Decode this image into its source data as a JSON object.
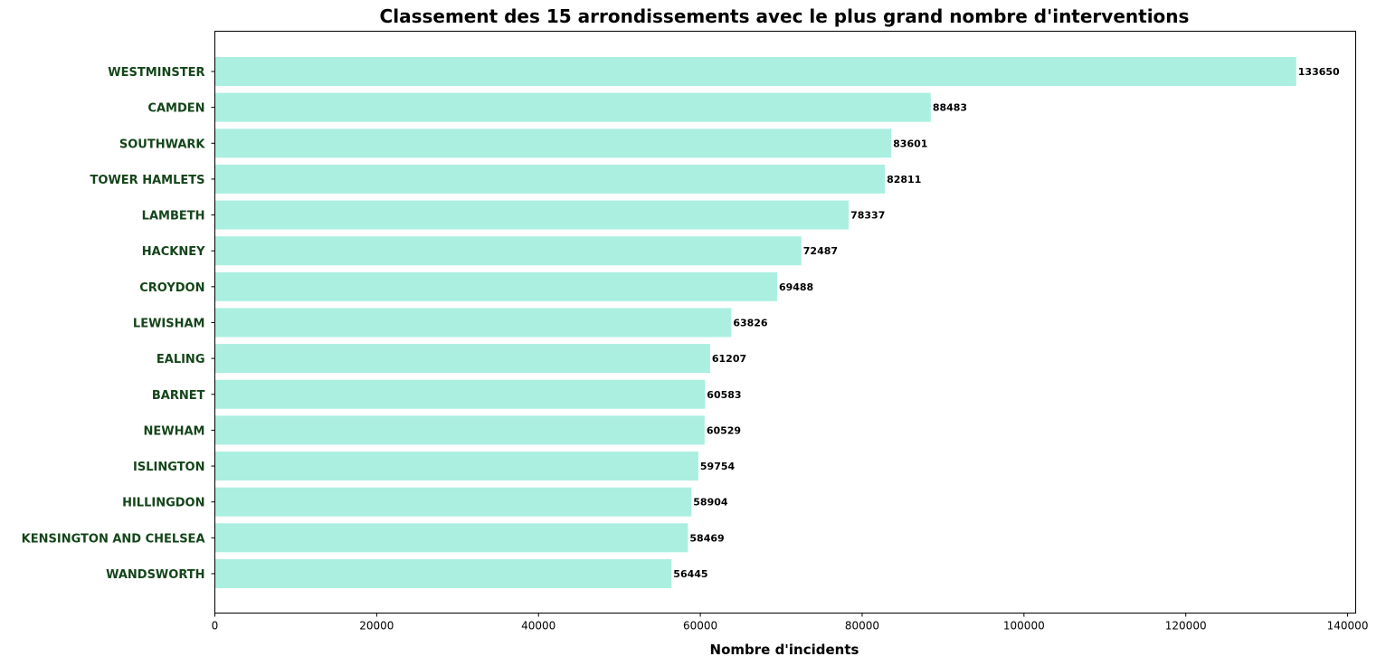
{
  "chart_data": {
    "type": "bar",
    "orientation": "horizontal",
    "title": "Classement des 15 arrondissements avec le plus grand nombre d'interventions",
    "xlabel": "Nombre d'incidents",
    "ylabel": "",
    "xlim": [
      0,
      141000
    ],
    "x_ticks": [
      0,
      20000,
      40000,
      60000,
      80000,
      100000,
      120000,
      140000
    ],
    "grid": false,
    "legend": "none",
    "categories": [
      "WESTMINSTER",
      "CAMDEN",
      "SOUTHWARK",
      "TOWER HAMLETS",
      "LAMBETH",
      "HACKNEY",
      "CROYDON",
      "LEWISHAM",
      "EALING",
      "BARNET",
      "NEWHAM",
      "ISLINGTON",
      "HILLINGDON",
      "KENSINGTON AND CHELSEA",
      "WANDSWORTH"
    ],
    "values": [
      133650,
      88483,
      83601,
      82811,
      78337,
      72487,
      69488,
      63826,
      61207,
      60583,
      60529,
      59754,
      58904,
      58469,
      56445
    ],
    "colors": {
      "bar": "#abefe1",
      "category_label": "#14451a",
      "axis": "#000000"
    }
  }
}
